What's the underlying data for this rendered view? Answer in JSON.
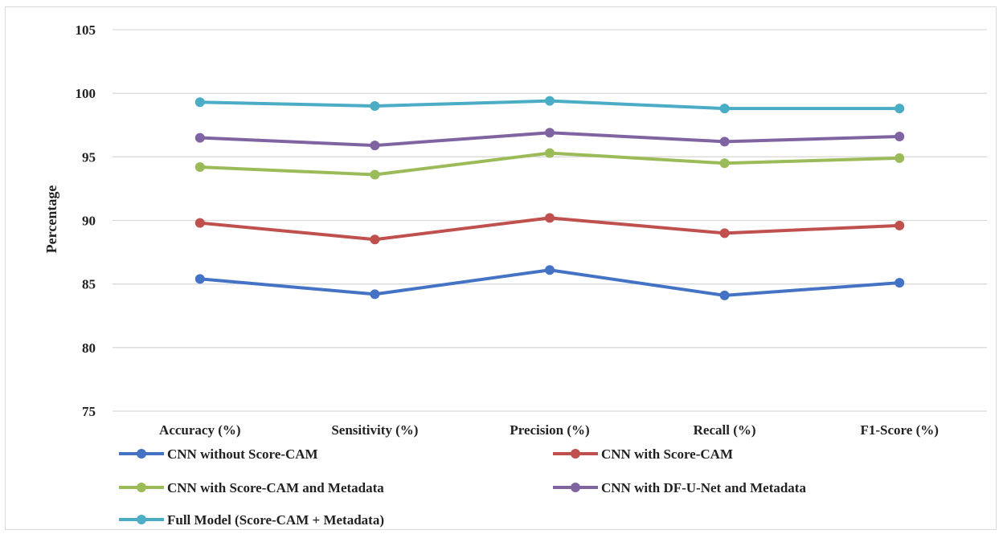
{
  "chart_data": {
    "type": "line",
    "title": "",
    "xlabel": "",
    "ylabel": "Percentage",
    "ylim": [
      75,
      105
    ],
    "yticks": [
      75,
      80,
      85,
      90,
      95,
      100,
      105
    ],
    "grid": true,
    "legend_position": "bottom",
    "categories": [
      "Accuracy (%)",
      "Sensitivity (%)",
      "Precision (%)",
      "Recall (%)",
      "F1-Score (%)"
    ],
    "series": [
      {
        "name": "CNN without Score-CAM",
        "color": "#4472c4",
        "values": [
          85.4,
          84.2,
          86.1,
          84.1,
          85.1
        ]
      },
      {
        "name": "CNN with Score-CAM",
        "color": "#c0504d",
        "values": [
          89.8,
          88.5,
          90.2,
          89.0,
          89.6
        ]
      },
      {
        "name": "CNN with Score-CAM and Metadata",
        "color": "#9bbb59",
        "values": [
          94.2,
          93.6,
          95.3,
          94.5,
          94.9
        ]
      },
      {
        "name": "CNN with DF-U-Net and Metadata",
        "color": "#8064a2",
        "values": [
          96.5,
          95.9,
          96.9,
          96.2,
          96.6
        ]
      },
      {
        "name": "Full Model (Score-CAM + Metadata)",
        "color": "#4bacc6",
        "values": [
          99.3,
          99.0,
          99.4,
          98.8,
          98.8
        ]
      }
    ]
  }
}
